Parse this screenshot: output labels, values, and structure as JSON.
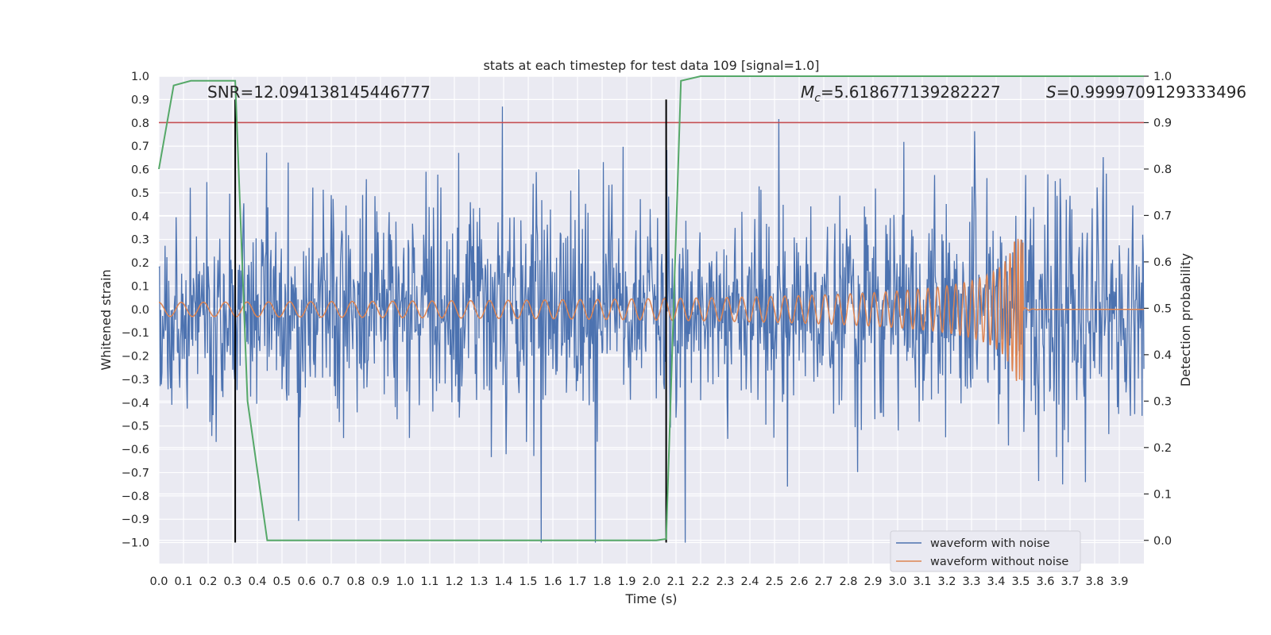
{
  "chart_data": {
    "type": "line",
    "title": "stats at each timestep for test data 109 [signal=1.0]",
    "xlabel": "Time (s)",
    "ylabel": "Whitened strain",
    "ylabel_right": "Detection probability",
    "xlim": [
      0.0,
      4.0
    ],
    "ylim": [
      -1.09,
      1.0
    ],
    "ylim_right": [
      -0.05,
      1.0
    ],
    "x_ticks": [
      "0.0",
      "0.1",
      "0.2",
      "0.3",
      "0.4",
      "0.5",
      "0.6",
      "0.7",
      "0.8",
      "0.9",
      "1.0",
      "1.1",
      "1.2",
      "1.3",
      "1.4",
      "1.5",
      "1.6",
      "1.7",
      "1.8",
      "1.9",
      "2.0",
      "2.1",
      "2.2",
      "2.3",
      "2.4",
      "2.5",
      "2.6",
      "2.7",
      "2.8",
      "2.9",
      "3.0",
      "3.1",
      "3.2",
      "3.3",
      "3.4",
      "3.5",
      "3.6",
      "3.7",
      "3.8",
      "3.9"
    ],
    "y_ticks": [
      "1.0",
      "0.9",
      "0.8",
      "0.7",
      "0.6",
      "0.5",
      "0.4",
      "0.3",
      "0.2",
      "0.1",
      "0.0",
      "−0.1",
      "−0.2",
      "−0.3",
      "−0.4",
      "−0.5",
      "−0.6",
      "−0.7",
      "−0.8",
      "−0.9",
      "−1.0"
    ],
    "y_right_ticks": [
      "1.0",
      "0.9",
      "0.8",
      "0.7",
      "0.6",
      "0.5",
      "0.4",
      "0.3",
      "0.2",
      "0.1",
      "0.0"
    ],
    "grid": true,
    "legend_position": "lower-right",
    "series": [
      {
        "name": "waveform with noise",
        "color": "#4c72b0",
        "axis": "left",
        "kind": "noise",
        "amplitude": 0.45,
        "peak_range": [
          -1.0,
          0.87
        ]
      },
      {
        "name": "waveform without noise",
        "color": "#dd8452",
        "axis": "left",
        "kind": "chirp",
        "start_amplitude": 0.03,
        "peak_amplitude": 0.31,
        "merger_time": 3.51,
        "ringdown_level": 0.0
      },
      {
        "name": "",
        "color": "#55a868",
        "axis": "right",
        "kind": "probability",
        "points": [
          [
            0.0,
            0.8
          ],
          [
            0.06,
            0.98
          ],
          [
            0.13,
            0.99
          ],
          [
            0.31,
            0.99
          ],
          [
            0.36,
            0.3
          ],
          [
            0.44,
            0.0
          ],
          [
            2.02,
            0.0
          ],
          [
            2.06,
            0.003
          ],
          [
            2.12,
            0.99
          ],
          [
            2.2,
            1.0
          ],
          [
            4.0,
            1.0
          ]
        ]
      }
    ],
    "threshold_line": {
      "value": 0.9,
      "axis": "right",
      "color": "#c44e52"
    },
    "vertical_markers": [
      {
        "x": 0.31,
        "y_top": 0.9,
        "y_bottom": -1.0,
        "color": "#000000"
      },
      {
        "x": 2.06,
        "y_top": 0.9,
        "y_bottom": -1.0,
        "color": "#000000"
      }
    ],
    "annotations": [
      {
        "id": "snr",
        "text": "SNR=12.094138145446777"
      },
      {
        "id": "mc",
        "prefix": "M",
        "subscript": "c",
        "text": "=5.618677139282227"
      },
      {
        "id": "s",
        "prefix": "S",
        "text": "=0.9999709129333496"
      }
    ]
  }
}
